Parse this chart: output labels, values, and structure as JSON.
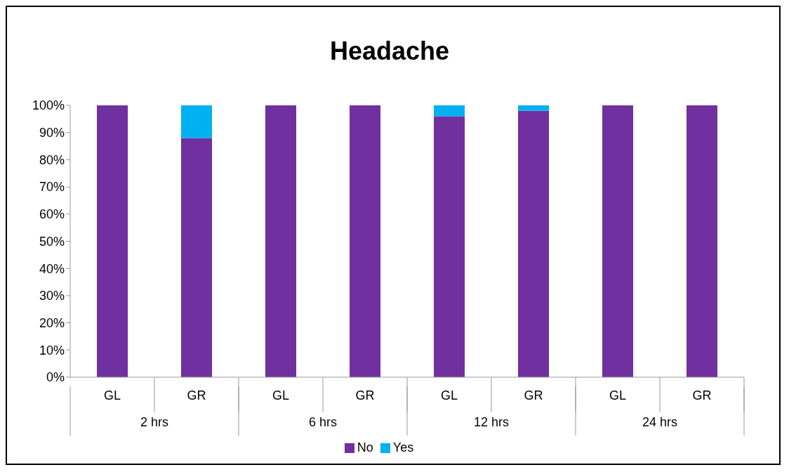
{
  "chart_data": {
    "type": "bar",
    "title": "Headache",
    "stacked": true,
    "categories": [
      "GL",
      "GR",
      "GL",
      "GR",
      "GL",
      "GR",
      "GL",
      "GR"
    ],
    "series": [
      {
        "name": "No",
        "color": "#7030a0",
        "values": [
          100,
          88,
          100,
          100,
          96,
          98,
          100,
          100
        ]
      },
      {
        "name": "Yes",
        "color": "#00b0f0",
        "values": [
          0,
          12,
          0,
          0,
          4,
          2,
          0,
          0
        ]
      }
    ],
    "annotations": [
      "2 hrs",
      "6 hrs",
      "12 hrs",
      "24 hrs"
    ],
    "ylim": [
      0,
      100
    ],
    "yticks": [
      {
        "value": 0,
        "label": "0%"
      },
      {
        "value": 10,
        "label": "10%"
      },
      {
        "value": 20,
        "label": "20%"
      },
      {
        "value": 30,
        "label": "30%"
      },
      {
        "value": 40,
        "label": "40%"
      },
      {
        "value": 50,
        "label": "50%"
      },
      {
        "value": 60,
        "label": "60%"
      },
      {
        "value": 70,
        "label": "70%"
      },
      {
        "value": 80,
        "label": "80%"
      },
      {
        "value": 90,
        "label": "90%"
      },
      {
        "value": 100,
        "label": "100%"
      }
    ],
    "legend": "bottom"
  }
}
